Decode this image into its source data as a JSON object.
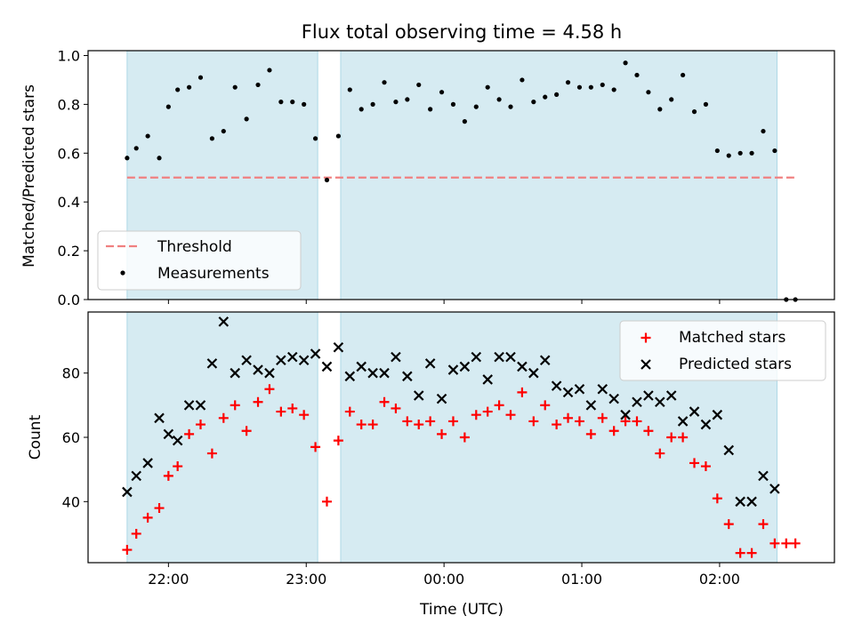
{
  "title": "Flux total observing time = 4.58 h",
  "colors": {
    "span": "#add8e6",
    "threshold": "#f08080",
    "measurement": "#000000",
    "matched": "#ff0000",
    "predicted": "#000000"
  },
  "chart_data": [
    {
      "type": "scatter",
      "ylabel": "Matched/Predicted stars",
      "ylim": [
        0.0,
        1.02
      ],
      "yticks": [
        "0.0",
        "0.2",
        "0.4",
        "0.6",
        "0.8",
        "1.0"
      ],
      "xlim": [
        "21:25",
        "02:50"
      ],
      "xticks": [
        "22:00",
        "23:00",
        "00:00",
        "01:00",
        "02:00"
      ],
      "observing_windows": [
        [
          "21:42",
          "23:05"
        ],
        [
          "23:15",
          "02:25"
        ]
      ],
      "threshold": {
        "label": "Threshold",
        "value": 0.5,
        "x_range": [
          "21:42",
          "02:33"
        ]
      },
      "legend": {
        "position": "lower-left",
        "entries": [
          "Threshold",
          "Measurements"
        ]
      },
      "series": [
        {
          "name": "Measurements",
          "points": [
            [
              "21:42",
              0.58
            ],
            [
              "21:46",
              0.62
            ],
            [
              "21:51",
              0.67
            ],
            [
              "21:56",
              0.58
            ],
            [
              "21:60",
              0.79
            ],
            [
              "22:04",
              0.86
            ],
            [
              "22:09",
              0.87
            ],
            [
              "22:14",
              0.91
            ],
            [
              "22:19",
              0.66
            ],
            [
              "22:24",
              0.69
            ],
            [
              "22:29",
              0.87
            ],
            [
              "22:34",
              0.74
            ],
            [
              "22:39",
              0.88
            ],
            [
              "22:44",
              0.94
            ],
            [
              "22:49",
              0.81
            ],
            [
              "22:54",
              0.81
            ],
            [
              "22:59",
              0.8
            ],
            [
              "23:04",
              0.66
            ],
            [
              "23:09",
              0.49
            ],
            [
              "23:14",
              0.67
            ],
            [
              "23:19",
              0.86
            ],
            [
              "23:24",
              0.78
            ],
            [
              "23:29",
              0.8
            ],
            [
              "23:34",
              0.89
            ],
            [
              "23:39",
              0.81
            ],
            [
              "23:44",
              0.82
            ],
            [
              "23:49",
              0.88
            ],
            [
              "23:54",
              0.78
            ],
            [
              "23:59",
              0.85
            ],
            [
              "00:04",
              0.8
            ],
            [
              "00:09",
              0.73
            ],
            [
              "00:14",
              0.79
            ],
            [
              "00:19",
              0.87
            ],
            [
              "00:24",
              0.82
            ],
            [
              "00:29",
              0.79
            ],
            [
              "00:34",
              0.9
            ],
            [
              "00:39",
              0.81
            ],
            [
              "00:44",
              0.83
            ],
            [
              "00:49",
              0.84
            ],
            [
              "00:54",
              0.89
            ],
            [
              "00:59",
              0.87
            ],
            [
              "01:04",
              0.87
            ],
            [
              "01:09",
              0.88
            ],
            [
              "01:14",
              0.86
            ],
            [
              "01:19",
              0.97
            ],
            [
              "01:24",
              0.92
            ],
            [
              "01:29",
              0.85
            ],
            [
              "01:34",
              0.78
            ],
            [
              "01:39",
              0.82
            ],
            [
              "01:44",
              0.92
            ],
            [
              "01:49",
              0.77
            ],
            [
              "01:54",
              0.8
            ],
            [
              "01:59",
              0.61
            ],
            [
              "02:04",
              0.59
            ],
            [
              "02:09",
              0.6
            ],
            [
              "02:14",
              0.6
            ],
            [
              "02:19",
              0.69
            ],
            [
              "02:24",
              0.61
            ],
            [
              "02:29",
              0.0
            ],
            [
              "02:33",
              0.0
            ]
          ]
        }
      ]
    },
    {
      "type": "scatter",
      "xlabel": "Time (UTC)",
      "ylabel": "Count",
      "ylim": [
        21,
        99
      ],
      "yticks": [
        "40",
        "60",
        "80"
      ],
      "xlim": [
        "21:25",
        "02:50"
      ],
      "xticks": [
        "22:00",
        "23:00",
        "00:00",
        "01:00",
        "02:00"
      ],
      "observing_windows": [
        [
          "21:42",
          "23:05"
        ],
        [
          "23:15",
          "02:25"
        ]
      ],
      "legend": {
        "position": "upper-right",
        "entries": [
          "Matched stars",
          "Predicted stars"
        ]
      },
      "series": [
        {
          "name": "Matched stars",
          "marker": "+",
          "points": [
            [
              "21:42",
              25
            ],
            [
              "21:46",
              30
            ],
            [
              "21:51",
              35
            ],
            [
              "21:56",
              38
            ],
            [
              "21:60",
              48
            ],
            [
              "22:04",
              51
            ],
            [
              "22:09",
              61
            ],
            [
              "22:14",
              64
            ],
            [
              "22:19",
              55
            ],
            [
              "22:24",
              66
            ],
            [
              "22:29",
              70
            ],
            [
              "22:34",
              62
            ],
            [
              "22:39",
              71
            ],
            [
              "22:44",
              75
            ],
            [
              "22:49",
              68
            ],
            [
              "22:54",
              69
            ],
            [
              "22:59",
              67
            ],
            [
              "23:04",
              57
            ],
            [
              "23:09",
              40
            ],
            [
              "23:14",
              59
            ],
            [
              "23:19",
              68
            ],
            [
              "23:24",
              64
            ],
            [
              "23:29",
              64
            ],
            [
              "23:34",
              71
            ],
            [
              "23:39",
              69
            ],
            [
              "23:44",
              65
            ],
            [
              "23:49",
              64
            ],
            [
              "23:54",
              65
            ],
            [
              "23:59",
              61
            ],
            [
              "00:04",
              65
            ],
            [
              "00:09",
              60
            ],
            [
              "00:14",
              67
            ],
            [
              "00:19",
              68
            ],
            [
              "00:24",
              70
            ],
            [
              "00:29",
              67
            ],
            [
              "00:34",
              74
            ],
            [
              "00:39",
              65
            ],
            [
              "00:44",
              70
            ],
            [
              "00:49",
              64
            ],
            [
              "00:54",
              66
            ],
            [
              "00:59",
              65
            ],
            [
              "01:04",
              61
            ],
            [
              "01:09",
              66
            ],
            [
              "01:14",
              62
            ],
            [
              "01:19",
              65
            ],
            [
              "01:24",
              65
            ],
            [
              "01:29",
              62
            ],
            [
              "01:34",
              55
            ],
            [
              "01:39",
              60
            ],
            [
              "01:44",
              60
            ],
            [
              "01:49",
              52
            ],
            [
              "01:54",
              51
            ],
            [
              "01:59",
              41
            ],
            [
              "02:04",
              33
            ],
            [
              "02:09",
              24
            ],
            [
              "02:14",
              24
            ],
            [
              "02:19",
              33
            ],
            [
              "02:24",
              27
            ],
            [
              "02:29",
              27
            ],
            [
              "02:33",
              27
            ]
          ]
        },
        {
          "name": "Predicted stars",
          "marker": "x",
          "points": [
            [
              "21:42",
              43
            ],
            [
              "21:46",
              48
            ],
            [
              "21:51",
              52
            ],
            [
              "21:56",
              66
            ],
            [
              "21:60",
              61
            ],
            [
              "22:04",
              59
            ],
            [
              "22:09",
              70
            ],
            [
              "22:14",
              70
            ],
            [
              "22:19",
              83
            ],
            [
              "22:24",
              96
            ],
            [
              "22:29",
              80
            ],
            [
              "22:34",
              84
            ],
            [
              "22:39",
              81
            ],
            [
              "22:44",
              80
            ],
            [
              "22:49",
              84
            ],
            [
              "22:54",
              85
            ],
            [
              "22:59",
              84
            ],
            [
              "23:04",
              86
            ],
            [
              "23:09",
              82
            ],
            [
              "23:14",
              88
            ],
            [
              "23:19",
              79
            ],
            [
              "23:24",
              82
            ],
            [
              "23:29",
              80
            ],
            [
              "23:34",
              80
            ],
            [
              "23:39",
              85
            ],
            [
              "23:44",
              79
            ],
            [
              "23:49",
              73
            ],
            [
              "23:54",
              83
            ],
            [
              "23:59",
              72
            ],
            [
              "00:04",
              81
            ],
            [
              "00:09",
              82
            ],
            [
              "00:14",
              85
            ],
            [
              "00:19",
              78
            ],
            [
              "00:24",
              85
            ],
            [
              "00:29",
              85
            ],
            [
              "00:34",
              82
            ],
            [
              "00:39",
              80
            ],
            [
              "00:44",
              84
            ],
            [
              "00:49",
              76
            ],
            [
              "00:54",
              74
            ],
            [
              "00:59",
              75
            ],
            [
              "01:04",
              70
            ],
            [
              "01:09",
              75
            ],
            [
              "01:14",
              72
            ],
            [
              "01:19",
              67
            ],
            [
              "01:24",
              71
            ],
            [
              "01:29",
              73
            ],
            [
              "01:34",
              71
            ],
            [
              "01:39",
              73
            ],
            [
              "01:44",
              65
            ],
            [
              "01:49",
              68
            ],
            [
              "01:54",
              64
            ],
            [
              "01:59",
              67
            ],
            [
              "02:04",
              56
            ],
            [
              "02:09",
              40
            ],
            [
              "02:14",
              40
            ],
            [
              "02:19",
              48
            ],
            [
              "02:24",
              44
            ]
          ]
        }
      ]
    }
  ]
}
